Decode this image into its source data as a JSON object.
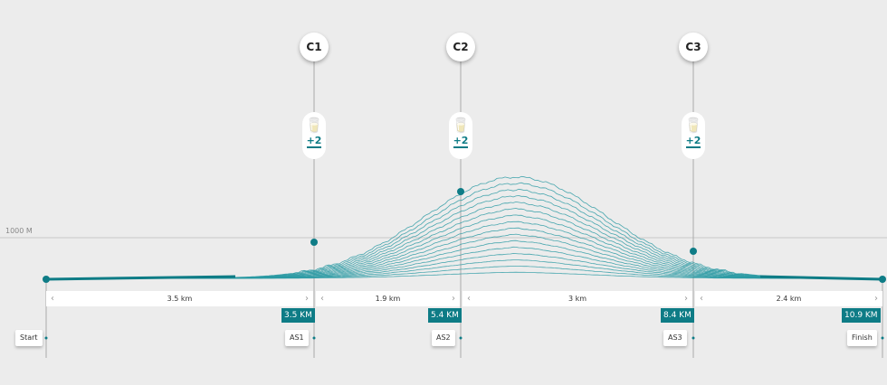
{
  "elevation_label": "1000 M",
  "checkpoints": [
    {
      "label": "C1",
      "supply": "+2"
    },
    {
      "label": "C2",
      "supply": "+2"
    },
    {
      "label": "C3",
      "supply": "+2"
    }
  ],
  "segments": [
    "3.5 km",
    "1.9 km",
    "3 km",
    "2.4 km"
  ],
  "km_markers": [
    "3.5 KM",
    "5.4 KM",
    "8.4 KM",
    "10.9 KM"
  ],
  "stations": [
    "Start",
    "AS1",
    "AS2",
    "AS3",
    "Finish"
  ],
  "colors": {
    "accent": "#0e7c86",
    "line": "#2a9aa3"
  },
  "icons": [
    "glass-icon",
    "bottle-icon",
    "chevron-left-icon",
    "chevron-right-icon"
  ]
}
